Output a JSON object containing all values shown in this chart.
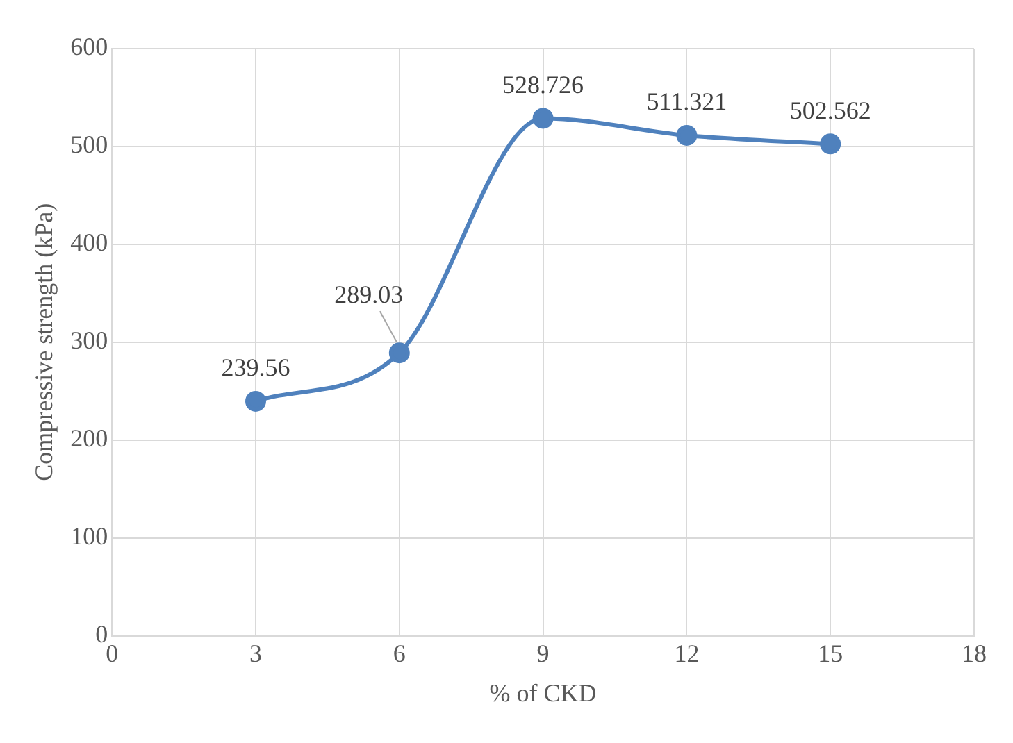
{
  "chart_data": {
    "type": "line",
    "xlabel": "% of CKD",
    "ylabel": "Compressive strength (kPa)",
    "x": [
      3,
      6,
      9,
      12,
      15
    ],
    "series": [
      {
        "color": "#4f81bd",
        "values": [
          239.56,
          289.03,
          528.726,
          511.321,
          502.562
        ]
      }
    ],
    "xlim": [
      0,
      18
    ],
    "xticks": [
      0,
      3,
      6,
      9,
      12,
      15,
      18
    ],
    "ylim": [
      0,
      600
    ],
    "yticks": [
      0,
      100,
      200,
      300,
      400,
      500,
      600
    ],
    "grid": true,
    "legend": false,
    "marker": "circle",
    "line_style": "solid",
    "data_labels": true
  }
}
